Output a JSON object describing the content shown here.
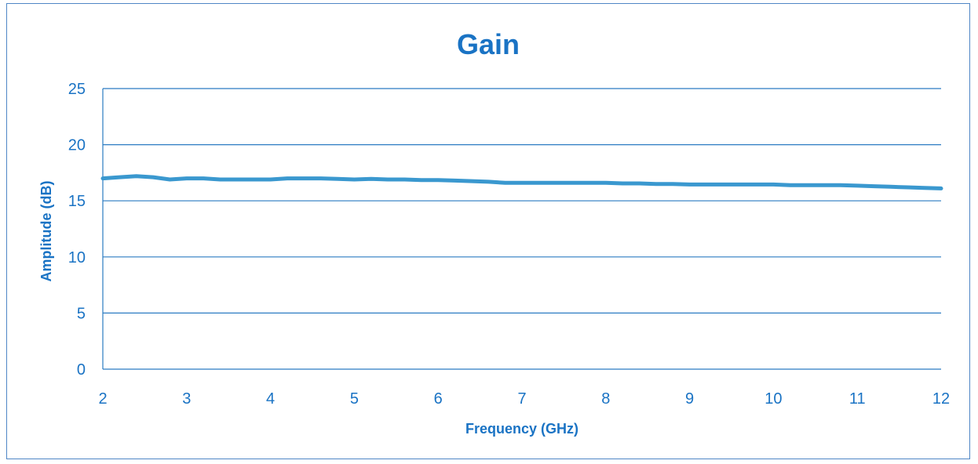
{
  "colors": {
    "accent": "#1a73c4",
    "grid": "#2b7bc2",
    "line": "#3a98cf",
    "frame": "#4f86c6"
  },
  "chart_data": {
    "type": "line",
    "title": "Gain",
    "xlabel": "Frequency (GHz)",
    "ylabel": "Amplitude (dB)",
    "xlim": [
      2,
      12
    ],
    "ylim": [
      0,
      25
    ],
    "xticks": [
      2,
      3,
      4,
      5,
      6,
      7,
      8,
      9,
      10,
      11,
      12
    ],
    "yticks": [
      0,
      5,
      10,
      15,
      20,
      25
    ],
    "grid": true,
    "legend": "none",
    "series": [
      {
        "x": [
          2.0,
          2.2,
          2.4,
          2.6,
          2.8,
          3.0,
          3.2,
          3.4,
          3.6,
          3.8,
          4.0,
          4.2,
          4.4,
          4.6,
          4.8,
          5.0,
          5.2,
          5.4,
          5.6,
          5.8,
          6.0,
          6.2,
          6.4,
          6.6,
          6.8,
          7.0,
          7.2,
          7.4,
          7.6,
          7.8,
          8.0,
          8.2,
          8.4,
          8.6,
          8.8,
          9.0,
          9.2,
          9.4,
          9.6,
          9.8,
          10.0,
          10.2,
          10.4,
          10.6,
          10.8,
          11.0,
          11.2,
          11.4,
          11.6,
          11.8,
          12.0
        ],
        "y": [
          17.0,
          17.1,
          17.2,
          17.1,
          16.9,
          17.0,
          17.0,
          16.9,
          16.9,
          16.9,
          16.9,
          17.0,
          17.0,
          17.0,
          16.95,
          16.9,
          16.95,
          16.9,
          16.9,
          16.85,
          16.85,
          16.8,
          16.75,
          16.7,
          16.6,
          16.6,
          16.6,
          16.6,
          16.6,
          16.6,
          16.6,
          16.55,
          16.55,
          16.5,
          16.5,
          16.45,
          16.45,
          16.45,
          16.45,
          16.45,
          16.45,
          16.4,
          16.4,
          16.4,
          16.4,
          16.35,
          16.3,
          16.25,
          16.2,
          16.15,
          16.1
        ]
      }
    ]
  }
}
